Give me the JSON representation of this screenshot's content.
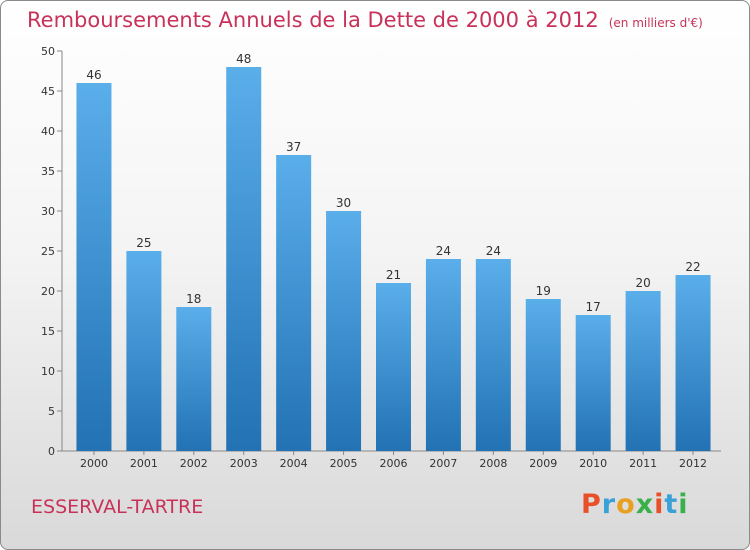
{
  "header": {
    "title": "Remboursements Annuels de la Dette de 2000 à 2012",
    "unit": "(en milliers d'€)"
  },
  "footer": {
    "commune": "ESSERVAL-TARTRE",
    "logo": "Proxiti"
  },
  "colors": {
    "title": "#c8325a",
    "bar_top": "#5aaeea",
    "bar_bottom": "#2272b4",
    "logo_letters": [
      "#e8502a",
      "#3aa0d8",
      "#e8a020",
      "#3ab04a",
      "#e8502a",
      "#3aa0d8",
      "#3ab04a"
    ]
  },
  "chart_data": {
    "type": "bar",
    "categories": [
      "2000",
      "2001",
      "2002",
      "2003",
      "2004",
      "2005",
      "2006",
      "2007",
      "2008",
      "2009",
      "2010",
      "2011",
      "2012"
    ],
    "values": [
      46,
      25,
      18,
      48,
      37,
      30,
      21,
      24,
      24,
      19,
      17,
      20,
      22
    ],
    "yticks": [
      0,
      5,
      10,
      15,
      20,
      25,
      30,
      35,
      40,
      45,
      50
    ],
    "ylim": [
      0,
      50
    ],
    "grid": false,
    "data_labels": true
  }
}
